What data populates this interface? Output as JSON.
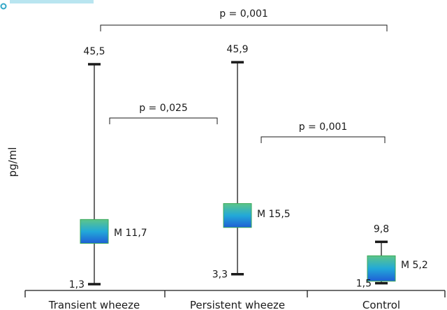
{
  "chart_data": {
    "type": "boxplot",
    "ylabel": "pg/ml",
    "ylim": [
      0,
      50
    ],
    "categories": [
      "Transient wheeze",
      "Persistent wheeze",
      "Control"
    ],
    "boxes": [
      {
        "category": "Transient wheeze",
        "min": 1.3,
        "max": 45.5,
        "q1": 9.5,
        "q3": 14.3,
        "median": 11.7,
        "min_label": "1,3",
        "max_label": "45,5",
        "median_label": "M 11,7"
      },
      {
        "category": "Persistent wheeze",
        "min": 3.3,
        "max": 45.9,
        "q1": 12.7,
        "q3": 17.5,
        "median": 15.5,
        "min_label": "3,3",
        "max_label": "45,9",
        "median_label": "M 15,5"
      },
      {
        "category": "Control",
        "min": 1.5,
        "max": 9.8,
        "q1": 1.9,
        "q3": 7.0,
        "median": 5.2,
        "min_label": "1,5",
        "max_label": "9,8",
        "median_label": "M 5,2"
      }
    ],
    "comparisons": [
      {
        "from": 0,
        "to": 2,
        "label": "p = 0,001"
      },
      {
        "from": 0,
        "to": 1,
        "label": "p = 0,025"
      },
      {
        "from": 1,
        "to": 2,
        "label": "p = 0,001"
      }
    ],
    "colors": {
      "box_top": "#5cc58a",
      "box_mid": "#22a9d8",
      "box_bottom": "#1f5fd6",
      "box_border": "#3aa85a",
      "header_accent": "#33a8c8"
    }
  }
}
